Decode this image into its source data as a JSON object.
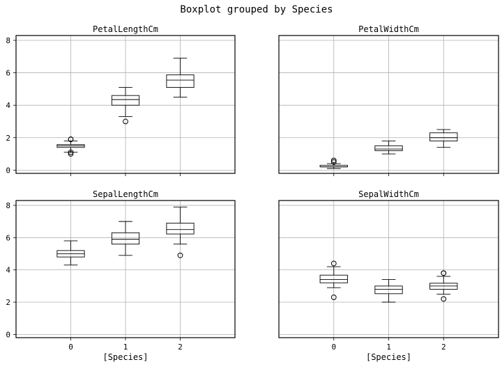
{
  "suptitle": "Boxplot grouped by Species",
  "chart_data": {
    "type": "boxplot",
    "title": "Boxplot grouped by Species",
    "categories": [
      "0",
      "1",
      "2"
    ],
    "xlabel": "[Species]",
    "ylim": [
      -0.2,
      8.3
    ],
    "yticks": [
      0,
      2,
      4,
      6,
      8
    ],
    "sharey": true,
    "grid": true,
    "subplots": [
      {
        "title": "PetalLengthCm",
        "boxes": [
          {
            "whislo": 1.1,
            "q1": 1.4,
            "med": 1.5,
            "q3": 1.575,
            "whishi": 1.8,
            "fliers": [
              1.0,
              1.1,
              1.9,
              1.9
            ]
          },
          {
            "whislo": 3.3,
            "q1": 4.0,
            "med": 4.35,
            "q3": 4.6,
            "whishi": 5.1,
            "fliers": [
              3.0
            ]
          },
          {
            "whislo": 4.5,
            "q1": 5.1,
            "med": 5.55,
            "q3": 5.875,
            "whishi": 6.9,
            "fliers": []
          }
        ]
      },
      {
        "title": "PetalWidthCm",
        "boxes": [
          {
            "whislo": 0.1,
            "q1": 0.2,
            "med": 0.2,
            "q3": 0.3,
            "whishi": 0.4,
            "fliers": [
              0.5,
              0.6
            ]
          },
          {
            "whislo": 1.0,
            "q1": 1.2,
            "med": 1.3,
            "q3": 1.5,
            "whishi": 1.8,
            "fliers": []
          },
          {
            "whislo": 1.4,
            "q1": 1.8,
            "med": 2.0,
            "q3": 2.3,
            "whishi": 2.5,
            "fliers": []
          }
        ]
      },
      {
        "title": "SepalLengthCm",
        "boxes": [
          {
            "whislo": 4.3,
            "q1": 4.8,
            "med": 5.0,
            "q3": 5.2,
            "whishi": 5.8,
            "fliers": []
          },
          {
            "whislo": 4.9,
            "q1": 5.6,
            "med": 5.9,
            "q3": 6.3,
            "whishi": 7.0,
            "fliers": []
          },
          {
            "whislo": 5.6,
            "q1": 6.225,
            "med": 6.5,
            "q3": 6.9,
            "whishi": 7.9,
            "fliers": [
              4.9
            ]
          }
        ]
      },
      {
        "title": "SepalWidthCm",
        "boxes": [
          {
            "whislo": 2.9,
            "q1": 3.2,
            "med": 3.4,
            "q3": 3.675,
            "whishi": 4.2,
            "fliers": [
              2.3,
              4.4
            ]
          },
          {
            "whislo": 2.0,
            "q1": 2.525,
            "med": 2.8,
            "q3": 3.0,
            "whishi": 3.4,
            "fliers": []
          },
          {
            "whislo": 2.5,
            "q1": 2.8,
            "med": 3.0,
            "q3": 3.175,
            "whishi": 3.6,
            "fliers": [
              2.2,
              3.8,
              3.8
            ]
          }
        ]
      }
    ]
  }
}
